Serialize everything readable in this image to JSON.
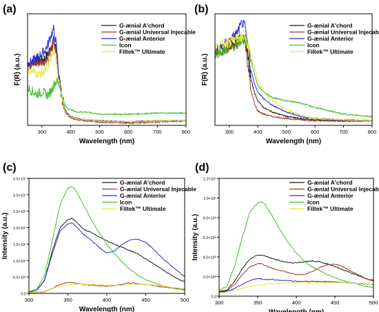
{
  "colors": {
    "G-ænial A'chord": "#1a1a1a",
    "G-ænial Universal Injecable": "#a0342a",
    "G-ænial Anterior": "#2a2ad0",
    "Icon": "#3fbf2a",
    "Filtek™ Ultimate": "#e8e83a"
  },
  "chart_data": [
    {
      "panel": "(a)",
      "type": "line",
      "xlabel": "Wavelength (nm)",
      "ylabel": "F(R) (a.u.)",
      "xlim": [
        250,
        800
      ],
      "ylim": [
        0,
        1
      ],
      "xticks": [
        "300",
        "400",
        "500",
        "600",
        "700",
        "800"
      ],
      "yticks": [],
      "legend": "top-right",
      "series": [
        {
          "name": "G-ænial A'chord",
          "x": [
            250,
            270,
            290,
            310,
            320,
            330,
            340,
            350,
            360,
            370,
            380,
            390,
            400,
            420,
            450,
            500,
            600,
            700,
            800
          ],
          "y": [
            0.55,
            0.57,
            0.58,
            0.6,
            0.64,
            0.7,
            0.76,
            0.68,
            0.4,
            0.24,
            0.14,
            0.1,
            0.08,
            0.06,
            0.05,
            0.04,
            0.03,
            0.04,
            0.04
          ]
        },
        {
          "name": "G-ænial Universal Injecable",
          "x": [
            250,
            270,
            290,
            310,
            320,
            330,
            340,
            350,
            360,
            370,
            380,
            390,
            400,
            420,
            450,
            500,
            600,
            700,
            800
          ],
          "y": [
            0.53,
            0.55,
            0.56,
            0.58,
            0.61,
            0.66,
            0.72,
            0.66,
            0.4,
            0.22,
            0.12,
            0.09,
            0.07,
            0.05,
            0.04,
            0.03,
            0.02,
            0.03,
            0.04
          ]
        },
        {
          "name": "G-ænial Anterior",
          "x": [
            250,
            270,
            290,
            310,
            320,
            330,
            340,
            350,
            360,
            370,
            380,
            390,
            400,
            420,
            450,
            500,
            600,
            700,
            800
          ],
          "y": [
            0.55,
            0.58,
            0.62,
            0.67,
            0.72,
            0.8,
            0.86,
            0.72,
            0.42,
            0.24,
            0.14,
            0.1,
            0.08,
            0.06,
            0.05,
            0.04,
            0.03,
            0.04,
            0.04
          ]
        },
        {
          "name": "Icon",
          "x": [
            250,
            260,
            280,
            300,
            320,
            330,
            340,
            350,
            360,
            370,
            380,
            390,
            400,
            420,
            450,
            500,
            600,
            700,
            800
          ],
          "y": [
            0.34,
            0.32,
            0.28,
            0.3,
            0.27,
            0.3,
            0.36,
            0.4,
            0.36,
            0.26,
            0.18,
            0.15,
            0.14,
            0.12,
            0.12,
            0.1,
            0.1,
            0.11,
            0.11
          ]
        },
        {
          "name": "Filtek™ Ultimate",
          "x": [
            250,
            270,
            290,
            310,
            320,
            330,
            340,
            350,
            360,
            370,
            380,
            390,
            400,
            420,
            450,
            500,
            600,
            700,
            800
          ],
          "y": [
            0.5,
            0.48,
            0.46,
            0.48,
            0.52,
            0.6,
            0.66,
            0.58,
            0.38,
            0.22,
            0.13,
            0.09,
            0.08,
            0.06,
            0.05,
            0.04,
            0.03,
            0.04,
            0.04
          ]
        }
      ]
    },
    {
      "panel": "(b)",
      "type": "line",
      "xlabel": "Wavelength (nm)",
      "ylabel": "F(R) (a.u.)",
      "xlim": [
        250,
        800
      ],
      "ylim": [
        0,
        1
      ],
      "xticks": [
        "300",
        "400",
        "500",
        "600",
        "700",
        "800"
      ],
      "yticks": [],
      "legend": "top-right",
      "series": [
        {
          "name": "G-ænial A'chord",
          "x": [
            250,
            270,
            290,
            310,
            330,
            345,
            355,
            365,
            375,
            390,
            400,
            420,
            450,
            500,
            550,
            600,
            700,
            800
          ],
          "y": [
            0.66,
            0.68,
            0.7,
            0.72,
            0.75,
            0.82,
            0.8,
            0.62,
            0.42,
            0.28,
            0.22,
            0.16,
            0.12,
            0.08,
            0.06,
            0.05,
            0.04,
            0.04
          ]
        },
        {
          "name": "G-ænial Universal Injecable",
          "x": [
            250,
            270,
            290,
            310,
            330,
            345,
            355,
            365,
            375,
            390,
            400,
            420,
            450,
            500,
            550,
            600,
            700,
            800
          ],
          "y": [
            0.66,
            0.66,
            0.68,
            0.7,
            0.72,
            0.8,
            0.75,
            0.55,
            0.32,
            0.18,
            0.13,
            0.1,
            0.08,
            0.06,
            0.05,
            0.04,
            0.04,
            0.04
          ]
        },
        {
          "name": "G-ænial Anterior",
          "x": [
            250,
            270,
            290,
            310,
            330,
            345,
            355,
            365,
            375,
            390,
            400,
            420,
            450,
            500,
            550,
            600,
            700,
            800
          ],
          "y": [
            0.66,
            0.7,
            0.74,
            0.78,
            0.84,
            0.92,
            0.88,
            0.7,
            0.5,
            0.36,
            0.3,
            0.24,
            0.18,
            0.12,
            0.08,
            0.06,
            0.05,
            0.04
          ]
        },
        {
          "name": "Icon",
          "x": [
            250,
            270,
            290,
            310,
            330,
            345,
            355,
            365,
            375,
            390,
            400,
            420,
            450,
            500,
            550,
            600,
            700,
            800
          ],
          "y": [
            0.64,
            0.66,
            0.68,
            0.7,
            0.72,
            0.76,
            0.78,
            0.74,
            0.6,
            0.44,
            0.36,
            0.3,
            0.25,
            0.22,
            0.2,
            0.16,
            0.1,
            0.08
          ]
        },
        {
          "name": "Filtek™ Ultimate",
          "x": [
            250,
            270,
            290,
            310,
            330,
            345,
            355,
            365,
            375,
            390,
            400,
            420,
            450,
            500,
            550,
            600,
            700,
            800
          ],
          "y": [
            0.7,
            0.72,
            0.74,
            0.76,
            0.78,
            0.8,
            0.78,
            0.72,
            0.62,
            0.5,
            0.4,
            0.3,
            0.22,
            0.14,
            0.09,
            0.06,
            0.05,
            0.04
          ]
        }
      ]
    },
    {
      "panel": "(c)",
      "type": "line",
      "xlabel": "Wavelength (nm)",
      "ylabel": "Intensity (a.u.)",
      "xlim": [
        300,
        500
      ],
      "ylim": [
        0,
        3.5
      ],
      "xticks": [
        "300",
        "350",
        "400",
        "450",
        "500"
      ],
      "yticks": [
        "0.0",
        "5.0×10⁶",
        "1.0×10⁷",
        "1.5×10⁷",
        "2.0×10⁷",
        "2.5×10⁷",
        "3.0×10⁷",
        "3.5×10⁷"
      ],
      "legend": "top-right",
      "series": [
        {
          "name": "G-ænial A'chord",
          "x": [
            300,
            310,
            320,
            330,
            340,
            350,
            355,
            360,
            370,
            380,
            390,
            400,
            410,
            420,
            430,
            440,
            450,
            460,
            470,
            480,
            490,
            500
          ],
          "y": [
            0.05,
            0.1,
            0.4,
            1.3,
            2.0,
            2.25,
            2.28,
            2.2,
            1.95,
            1.85,
            1.72,
            1.6,
            1.5,
            1.4,
            1.3,
            1.2,
            1.05,
            0.9,
            0.75,
            0.6,
            0.45,
            0.35
          ]
        },
        {
          "name": "G-ænial Universal Injecable",
          "x": [
            300,
            320,
            330,
            340,
            350,
            360,
            370,
            380,
            390,
            400,
            410,
            420,
            430,
            440,
            450,
            460,
            470,
            480,
            490,
            500
          ],
          "y": [
            0.02,
            0.05,
            0.15,
            0.28,
            0.33,
            0.32,
            0.27,
            0.25,
            0.23,
            0.22,
            0.24,
            0.28,
            0.32,
            0.3,
            0.27,
            0.24,
            0.2,
            0.18,
            0.15,
            0.12
          ]
        },
        {
          "name": "G-ænial Anterior",
          "x": [
            300,
            310,
            320,
            330,
            340,
            350,
            355,
            360,
            370,
            380,
            390,
            400,
            410,
            420,
            430,
            440,
            450,
            460,
            470,
            480,
            490,
            500
          ],
          "y": [
            0.04,
            0.1,
            0.4,
            1.2,
            1.9,
            2.12,
            2.15,
            2.05,
            1.8,
            1.62,
            1.4,
            1.22,
            1.3,
            1.5,
            1.63,
            1.65,
            1.55,
            1.35,
            1.1,
            0.9,
            0.7,
            0.5
          ]
        },
        {
          "name": "Icon",
          "x": [
            300,
            310,
            320,
            330,
            340,
            350,
            355,
            360,
            370,
            380,
            390,
            400,
            410,
            420,
            430,
            440,
            450,
            460,
            470,
            480,
            490,
            500
          ],
          "y": [
            0.05,
            0.12,
            0.55,
            1.6,
            2.7,
            3.2,
            3.25,
            3.15,
            2.7,
            2.25,
            1.85,
            1.5,
            1.2,
            0.95,
            0.72,
            0.55,
            0.42,
            0.33,
            0.25,
            0.18,
            0.14,
            0.1
          ]
        },
        {
          "name": "Filtek™ Ultimate",
          "x": [
            300,
            320,
            330,
            340,
            350,
            360,
            370,
            380,
            390,
            400,
            420,
            440,
            460,
            480,
            500
          ],
          "y": [
            0.02,
            0.06,
            0.15,
            0.22,
            0.26,
            0.28,
            0.28,
            0.27,
            0.26,
            0.25,
            0.25,
            0.28,
            0.26,
            0.2,
            0.14
          ]
        }
      ]
    },
    {
      "panel": "(d)",
      "type": "line",
      "xlabel": "Wavelength (nm)",
      "ylabel": "Intensity (a.u.)",
      "xlim": [
        300,
        500
      ],
      "ylim": [
        0,
        1.2
      ],
      "xticks": [
        "300",
        "350",
        "400",
        "450",
        "500"
      ],
      "yticks": [
        "0.0",
        "2.0×10⁶",
        "4.0×10⁶",
        "6.0×10⁶",
        "8.0×10⁶",
        "1.0×10⁷",
        "1.2×10⁷"
      ],
      "legend": "top-right",
      "series": [
        {
          "name": "G-ænial A'chord",
          "x": [
            300,
            310,
            320,
            330,
            340,
            350,
            355,
            360,
            370,
            380,
            390,
            400,
            410,
            420,
            430,
            440,
            450,
            460,
            470,
            480,
            490,
            500
          ],
          "y": [
            0.05,
            0.06,
            0.15,
            0.28,
            0.38,
            0.42,
            0.42,
            0.41,
            0.38,
            0.36,
            0.34,
            0.34,
            0.35,
            0.36,
            0.35,
            0.33,
            0.3,
            0.27,
            0.24,
            0.21,
            0.18,
            0.16
          ]
        },
        {
          "name": "G-ænial Universal Injecable",
          "x": [
            300,
            310,
            320,
            330,
            340,
            350,
            355,
            360,
            370,
            380,
            390,
            400,
            410,
            420,
            430,
            440,
            450,
            460,
            470,
            480,
            490,
            500
          ],
          "y": [
            0.04,
            0.05,
            0.12,
            0.22,
            0.3,
            0.33,
            0.33,
            0.31,
            0.28,
            0.26,
            0.24,
            0.22,
            0.22,
            0.25,
            0.29,
            0.32,
            0.33,
            0.3,
            0.26,
            0.22,
            0.18,
            0.15
          ]
        },
        {
          "name": "G-ænial Anterior",
          "x": [
            300,
            310,
            320,
            330,
            340,
            350,
            360,
            370,
            380,
            390,
            400,
            420,
            440,
            460,
            480,
            500
          ],
          "y": [
            0.04,
            0.05,
            0.08,
            0.12,
            0.16,
            0.18,
            0.17,
            0.17,
            0.16,
            0.16,
            0.15,
            0.15,
            0.15,
            0.14,
            0.13,
            0.12
          ]
        },
        {
          "name": "Icon",
          "x": [
            300,
            310,
            320,
            330,
            340,
            350,
            355,
            360,
            370,
            380,
            390,
            400,
            410,
            420,
            430,
            440,
            450,
            460,
            470,
            480,
            490,
            500
          ],
          "y": [
            0.06,
            0.1,
            0.3,
            0.6,
            0.86,
            0.95,
            0.96,
            0.93,
            0.8,
            0.66,
            0.54,
            0.44,
            0.36,
            0.3,
            0.26,
            0.22,
            0.19,
            0.16,
            0.14,
            0.12,
            0.1,
            0.09
          ]
        },
        {
          "name": "Filtek™ Ultimate",
          "x": [
            300,
            310,
            320,
            330,
            340,
            350,
            360,
            370,
            380,
            390,
            400,
            420,
            440,
            460,
            480,
            500
          ],
          "y": [
            0.03,
            0.04,
            0.06,
            0.08,
            0.1,
            0.11,
            0.12,
            0.13,
            0.13,
            0.14,
            0.14,
            0.14,
            0.14,
            0.14,
            0.13,
            0.12
          ]
        }
      ]
    }
  ]
}
